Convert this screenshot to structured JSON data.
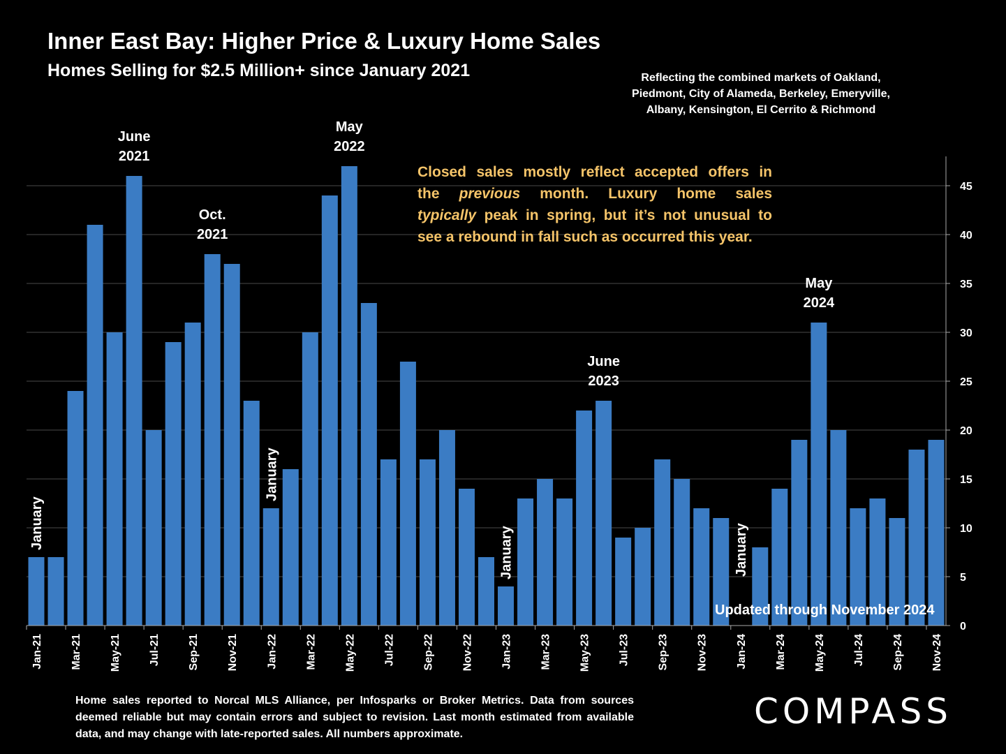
{
  "header": {
    "title": "Inner East Bay: Higher Price & Luxury Home Sales",
    "subtitle": "Homes Selling for $2.5 Million+ since January 2021"
  },
  "markets_note": "Reflecting the combined markets of Oakland, Piedmont, City of Alameda, Berkeley, Emeryville, Albany, Kensington, El Cerrito & Richmond",
  "callout": {
    "line1": "Closed sales mostly reflect accepted offers in",
    "line2_a": "the ",
    "line2_b": "previous",
    "line2_c": " month. Luxury home sales",
    "line3_a": "typically",
    "line3_b": " peak in spring, but it’s not unusual to",
    "line4": "see a rebound in fall such as occurred this year."
  },
  "updated_text": "Updated through November 2024",
  "footnote": "Home sales reported to Norcal MLS Alliance, per Infosparks or Broker Metrics. Data from sources deemed reliable but may contain errors and subject to revision.  Last month estimated from available data, and may change with late-reported sales. All numbers approximate.",
  "logo": "COMPASS",
  "colors": {
    "bar": "#3b7cc4",
    "callout": "#f5c469",
    "background": "#000000"
  },
  "chart_data": {
    "type": "bar",
    "categories": [
      "Jan-21",
      "Feb-21",
      "Mar-21",
      "Apr-21",
      "May-21",
      "Jun-21",
      "Jul-21",
      "Aug-21",
      "Sep-21",
      "Oct-21",
      "Nov-21",
      "Dec-21",
      "Jan-22",
      "Feb-22",
      "Mar-22",
      "Apr-22",
      "May-22",
      "Jun-22",
      "Jul-22",
      "Aug-22",
      "Sep-22",
      "Oct-22",
      "Nov-22",
      "Dec-22",
      "Jan-23",
      "Feb-23",
      "Mar-23",
      "Apr-23",
      "May-23",
      "Jun-23",
      "Jul-23",
      "Aug-23",
      "Sep-23",
      "Oct-23",
      "Nov-23",
      "Dec-23",
      "Jan-24",
      "Feb-24",
      "Mar-24",
      "Apr-24",
      "May-24",
      "Jun-24",
      "Jul-24",
      "Aug-24",
      "Sep-24",
      "Oct-24",
      "Nov-24"
    ],
    "values": [
      7,
      7,
      24,
      41,
      30,
      46,
      20,
      29,
      31,
      38,
      37,
      23,
      12,
      16,
      30,
      44,
      47,
      33,
      17,
      27,
      17,
      20,
      14,
      7,
      4,
      13,
      15,
      13,
      22,
      23,
      9,
      10,
      17,
      15,
      12,
      11,
      0,
      8,
      14,
      19,
      31,
      20,
      12,
      13,
      11,
      18,
      19
    ],
    "x_tick_labels": [
      "Jan-21",
      "Mar-21",
      "May-21",
      "Jul-21",
      "Sep-21",
      "Nov-21",
      "Jan-22",
      "Mar-22",
      "May-22",
      "Jul-22",
      "Sep-22",
      "Nov-22",
      "Jan-23",
      "Mar-23",
      "May-23",
      "Jul-23",
      "Sep-23",
      "Nov-23",
      "Jan-24",
      "Mar-24",
      "May-24",
      "Jul-24",
      "Sep-24",
      "Nov-24"
    ],
    "ylim": [
      0,
      48
    ],
    "y_ticks": [
      "0",
      "5",
      "10",
      "15",
      "20",
      "25",
      "30",
      "35",
      "40",
      "45"
    ],
    "y_axis_side": "right",
    "grid": true,
    "annotations": [
      {
        "index": 5,
        "lines": [
          "June",
          "2021"
        ]
      },
      {
        "index": 9,
        "lines": [
          "Oct.",
          "2021"
        ]
      },
      {
        "index": 16,
        "lines": [
          "May",
          "2022"
        ]
      },
      {
        "index": 29,
        "lines": [
          "June",
          "2023"
        ]
      },
      {
        "index": 40,
        "lines": [
          "May",
          "2024"
        ]
      }
    ],
    "january_labels": [
      {
        "index": 0,
        "text": "January"
      },
      {
        "index": 12,
        "text": "January"
      },
      {
        "index": 24,
        "text": "January"
      },
      {
        "index": 36,
        "text": "January"
      }
    ]
  }
}
